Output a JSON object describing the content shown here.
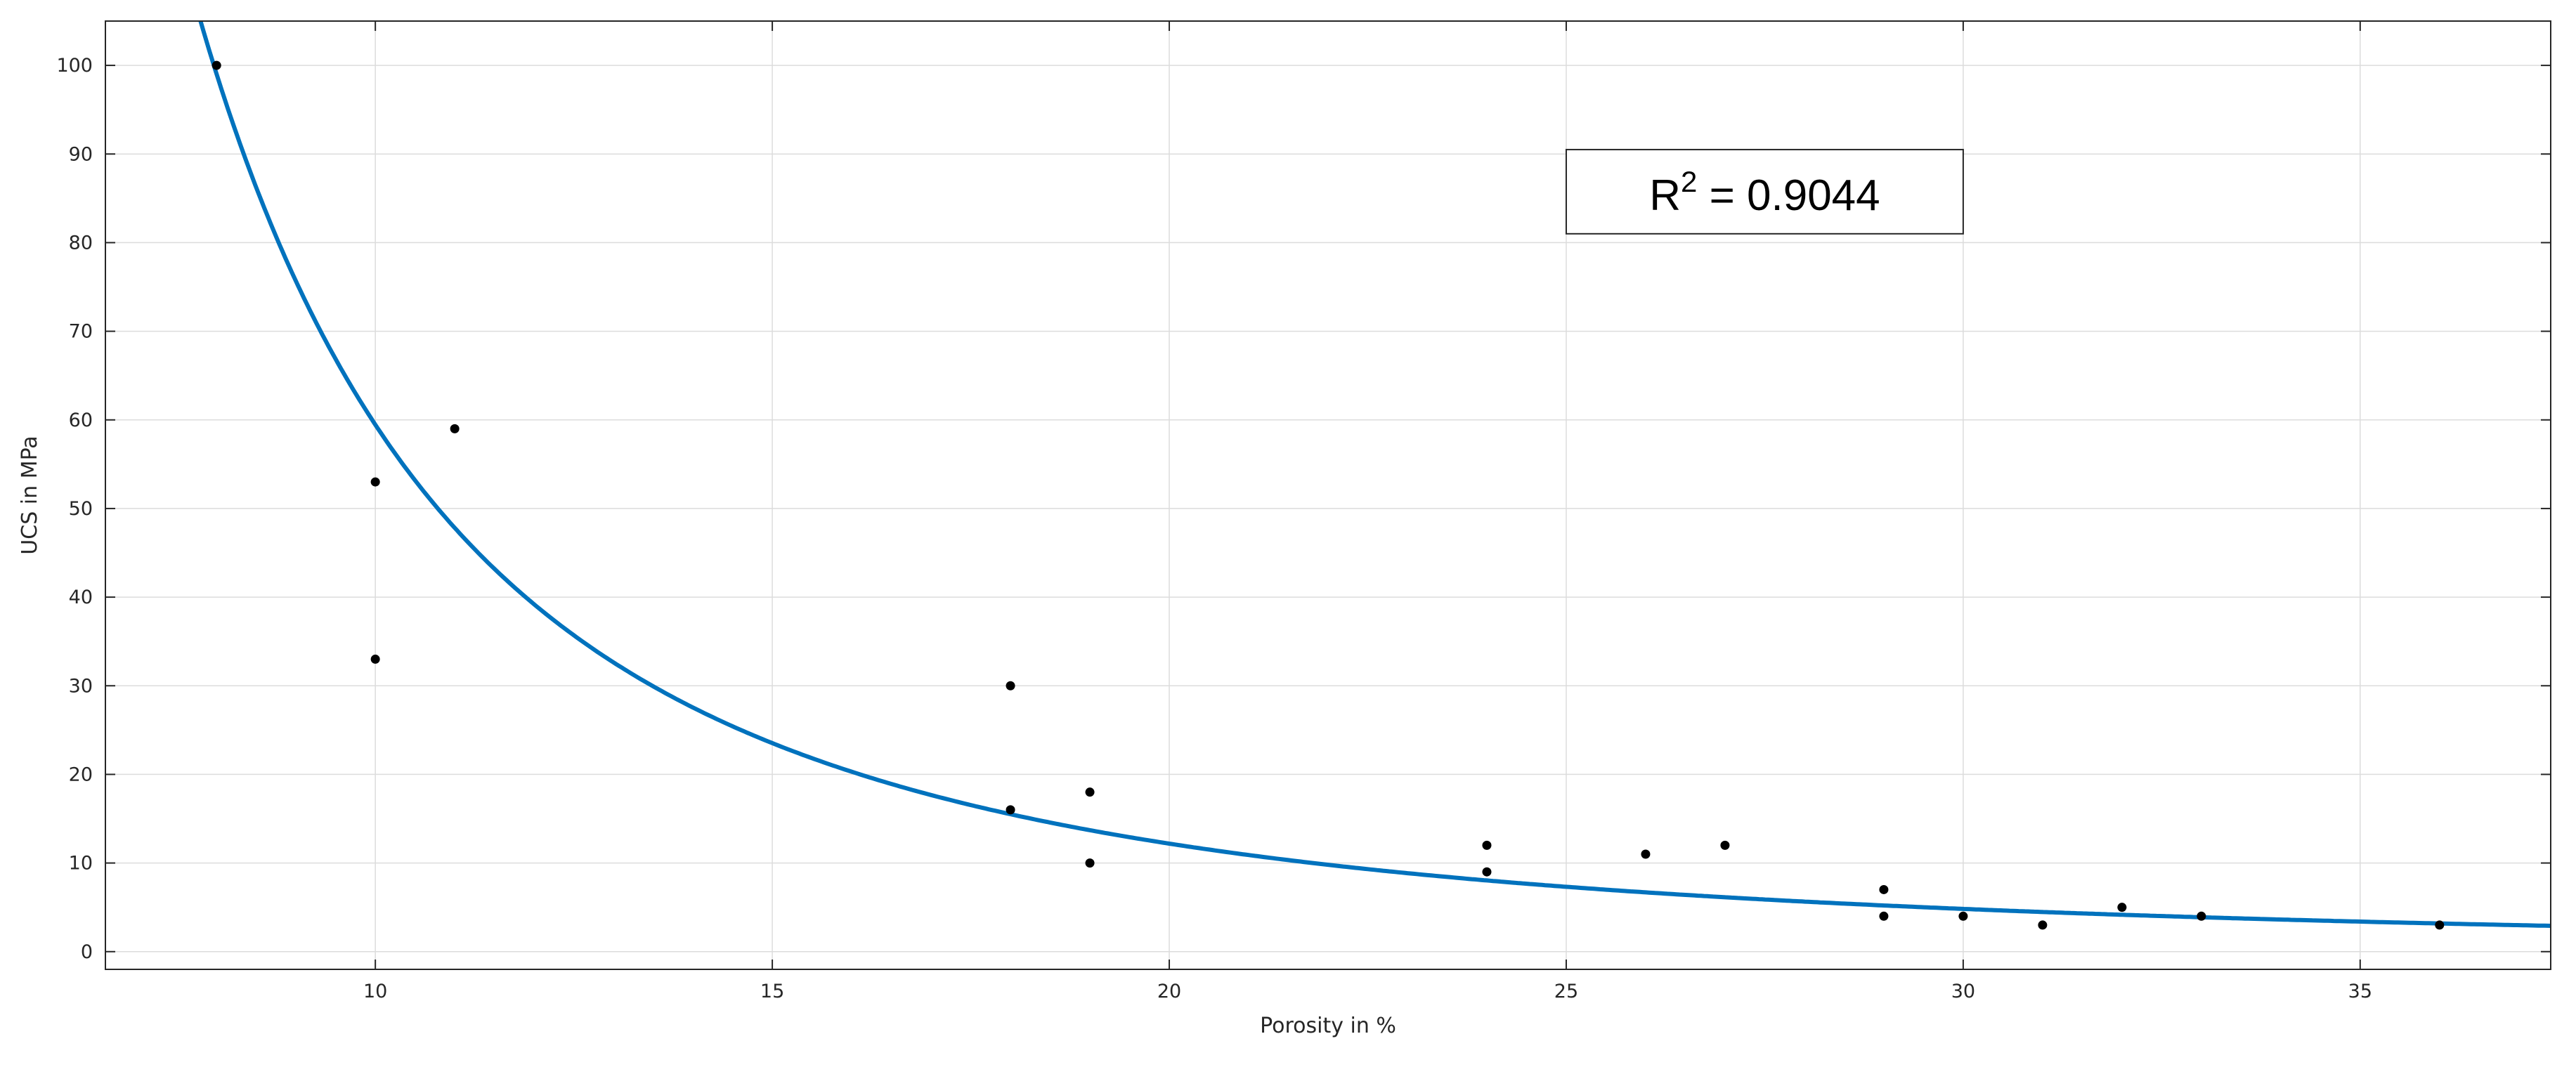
{
  "chart_data": {
    "type": "scatter",
    "title": "",
    "xlabel": "Porosity in %",
    "ylabel": "UCS in MPa",
    "xlim": [
      6.6,
      37.4
    ],
    "ylim": [
      -2,
      105
    ],
    "x_ticks": [
      10,
      15,
      20,
      25,
      30,
      35
    ],
    "y_ticks": [
      0,
      10,
      20,
      30,
      40,
      50,
      60,
      70,
      80,
      90,
      100
    ],
    "grid": true,
    "legend": "none",
    "series": [
      {
        "kind": "scatter",
        "color": "#000000",
        "points": [
          {
            "x": 8,
            "y": 100
          },
          {
            "x": 10,
            "y": 53
          },
          {
            "x": 10,
            "y": 33
          },
          {
            "x": 11,
            "y": 59
          },
          {
            "x": 18,
            "y": 30
          },
          {
            "x": 18,
            "y": 16
          },
          {
            "x": 19,
            "y": 18
          },
          {
            "x": 19,
            "y": 10
          },
          {
            "x": 24,
            "y": 12
          },
          {
            "x": 24,
            "y": 9
          },
          {
            "x": 26,
            "y": 11
          },
          {
            "x": 27,
            "y": 12
          },
          {
            "x": 29,
            "y": 7
          },
          {
            "x": 29,
            "y": 4
          },
          {
            "x": 30,
            "y": 4
          },
          {
            "x": 31,
            "y": 3
          },
          {
            "x": 32,
            "y": 5
          },
          {
            "x": 33,
            "y": 4
          },
          {
            "x": 36,
            "y": 3
          }
        ]
      },
      {
        "kind": "fit-line",
        "color": "#0072BD",
        "model": "power",
        "coefficient": 11500,
        "exponent": -2.2865
      }
    ],
    "annotation": {
      "base": "R",
      "superscript": "2",
      "text": " = 0.9044",
      "x_range": [
        25,
        30
      ],
      "y_range": [
        81,
        90.5
      ]
    }
  }
}
